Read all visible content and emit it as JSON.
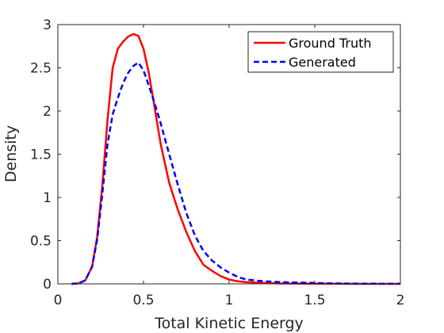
{
  "chart_data": {
    "type": "line",
    "xlabel": "Total Kinetic Energy",
    "ylabel": "Density",
    "xlim": [
      0,
      2
    ],
    "ylim": [
      0,
      3
    ],
    "xticks": [
      0,
      0.5,
      1,
      1.5,
      2
    ],
    "xtick_labels": [
      "0",
      "0.5",
      "1",
      "1.5",
      "2"
    ],
    "yticks": [
      0,
      0.5,
      1,
      1.5,
      2,
      2.5,
      3
    ],
    "ytick_labels": [
      "0",
      "0.5",
      "1",
      "1.5",
      "2",
      "2.5",
      "3"
    ],
    "grid": false,
    "legend_position": "top-right",
    "series": [
      {
        "name": "Ground Truth",
        "color": "#ff0000",
        "style": "solid",
        "x": [
          0.08,
          0.12,
          0.16,
          0.2,
          0.23,
          0.26,
          0.29,
          0.32,
          0.35,
          0.38,
          0.41,
          0.44,
          0.47,
          0.5,
          0.53,
          0.56,
          0.6,
          0.65,
          0.7,
          0.75,
          0.8,
          0.85,
          0.9,
          0.95,
          1.0,
          1.05,
          1.1,
          1.2,
          1.3,
          1.4,
          1.5,
          1.6,
          1.8,
          2.0
        ],
        "y": [
          0.0,
          0.005,
          0.04,
          0.2,
          0.55,
          1.15,
          1.9,
          2.5,
          2.72,
          2.8,
          2.86,
          2.89,
          2.87,
          2.72,
          2.45,
          2.1,
          1.62,
          1.17,
          0.86,
          0.6,
          0.38,
          0.22,
          0.15,
          0.09,
          0.05,
          0.03,
          0.02,
          0.01,
          0.005,
          0.003,
          0.002,
          0.001,
          0.0,
          0.0
        ]
      },
      {
        "name": "Generated",
        "color": "#0000ff",
        "style": "dashed",
        "x": [
          0.08,
          0.12,
          0.16,
          0.2,
          0.23,
          0.26,
          0.29,
          0.32,
          0.35,
          0.38,
          0.41,
          0.44,
          0.47,
          0.5,
          0.53,
          0.56,
          0.6,
          0.65,
          0.7,
          0.75,
          0.8,
          0.85,
          0.9,
          0.95,
          1.0,
          1.05,
          1.1,
          1.2,
          1.3,
          1.4,
          1.5,
          1.6,
          1.8,
          2.0
        ],
        "y": [
          0.0,
          0.005,
          0.04,
          0.2,
          0.52,
          1.05,
          1.62,
          1.96,
          2.15,
          2.32,
          2.44,
          2.52,
          2.56,
          2.47,
          2.3,
          2.12,
          1.86,
          1.5,
          1.15,
          0.82,
          0.56,
          0.38,
          0.27,
          0.19,
          0.13,
          0.08,
          0.05,
          0.03,
          0.02,
          0.015,
          0.01,
          0.005,
          0.002,
          0.001
        ]
      }
    ]
  }
}
